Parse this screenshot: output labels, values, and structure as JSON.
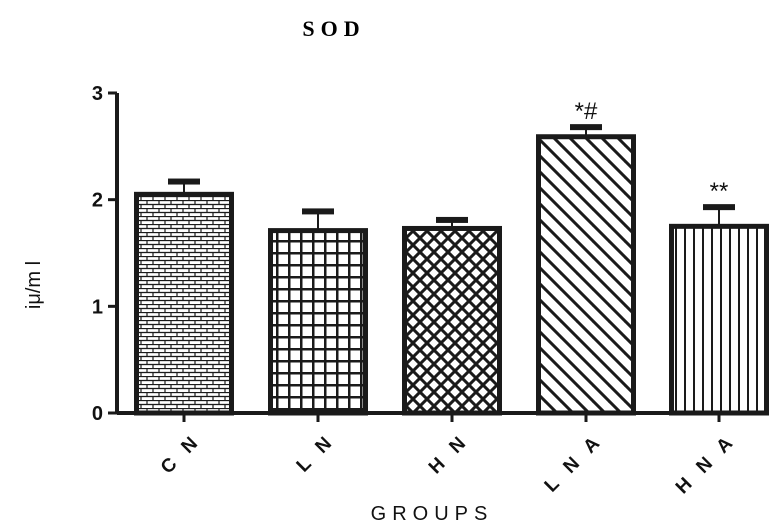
{
  "chart_data": {
    "type": "bar",
    "title": "SOD",
    "xlabel": "GROUPS",
    "ylabel": "iμ/m l",
    "ylim": [
      0,
      3
    ],
    "yticks": [
      "0",
      "1",
      "2",
      "3"
    ],
    "categories": [
      "C N",
      "L N",
      "H N",
      "L N A",
      "H N A"
    ],
    "values": [
      2.05,
      1.71,
      1.73,
      2.59,
      1.75
    ],
    "errors": [
      0.12,
      0.18,
      0.08,
      0.09,
      0.18
    ],
    "annotations": [
      "",
      "",
      "",
      "*#",
      "**"
    ],
    "patterns": [
      "brick",
      "grid",
      "crosshatch",
      "diagonal",
      "vertical"
    ],
    "bar_color": "#1a1a1a"
  }
}
